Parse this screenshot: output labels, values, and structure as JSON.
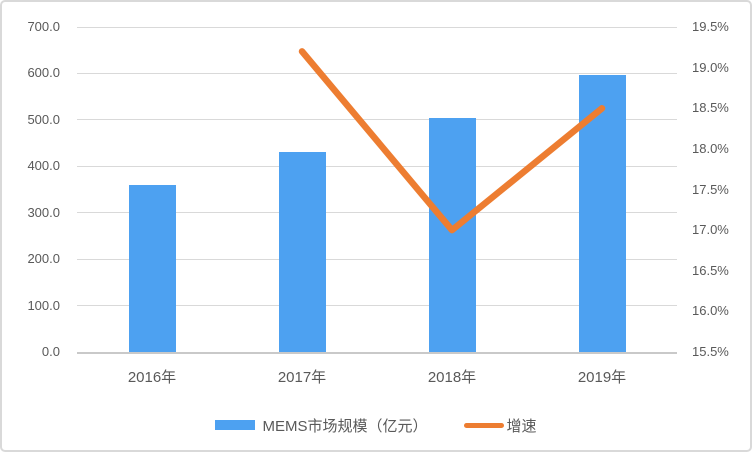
{
  "chart_data": {
    "type": "bar+line combo",
    "categories": [
      "2016年",
      "2017年",
      "2018年",
      "2019年"
    ],
    "series": [
      {
        "name": "MEMS市场规模（亿元）",
        "type": "bar",
        "axis": "left",
        "values": [
          360,
          430,
          503,
          596
        ],
        "color": "#4DA1F1"
      },
      {
        "name": "增速",
        "type": "line",
        "axis": "right",
        "unit": "%",
        "values": [
          null,
          19.2,
          17.0,
          18.5
        ],
        "color": "#ED7D31"
      }
    ],
    "left_axis": {
      "min": 0,
      "max": 700,
      "step": 100,
      "tick_labels": [
        "700.0",
        "600.0",
        "500.0",
        "400.0",
        "300.0",
        "200.0",
        "100.0",
        "0.0"
      ]
    },
    "right_axis": {
      "min": 15.5,
      "max": 19.5,
      "step": 0.5,
      "tick_labels": [
        "19.5%",
        "19.0%",
        "18.5%",
        "18.0%",
        "17.5%",
        "17.0%",
        "16.5%",
        "16.0%",
        "15.5%"
      ]
    },
    "title": "",
    "grid": true,
    "legend_position": "bottom"
  },
  "colors": {
    "bar": "#4DA1F1",
    "line": "#ED7D31",
    "grid": "#D9D9D9",
    "axis_text": "#595959",
    "frame_border": "#D9D9D9"
  }
}
